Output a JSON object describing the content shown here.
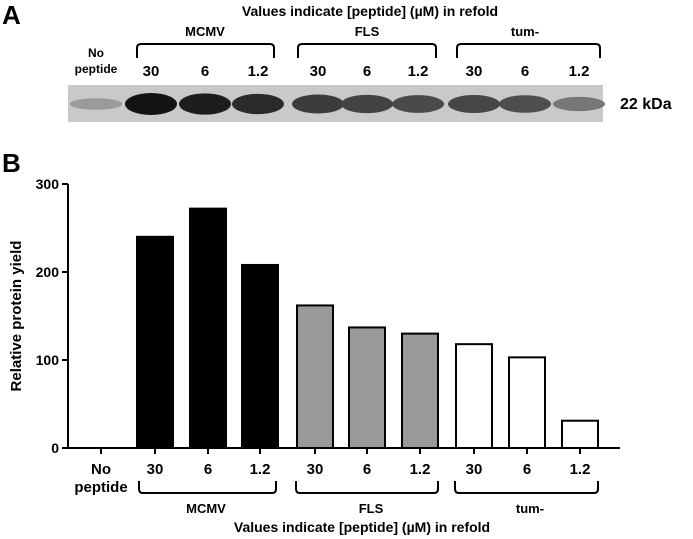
{
  "panel_a": {
    "letter": "A",
    "header": "Values indicate [peptide] (µM) in refold",
    "no_peptide_line1": "No",
    "no_peptide_line2": "peptide",
    "groups": [
      "MCMV",
      "FLS",
      "tum-"
    ],
    "lane_labels": [
      "30",
      "6",
      "1.2",
      "30",
      "6",
      "1.2",
      "30",
      "6",
      "1.2"
    ],
    "band_label": "22 kDa",
    "band_intensity": [
      0.25,
      1.0,
      0.95,
      0.88,
      0.78,
      0.74,
      0.7,
      0.72,
      0.68,
      0.45
    ]
  },
  "chart_data": {
    "type": "bar",
    "panel_letter": "B",
    "categories": [
      "No peptide",
      "30",
      "6",
      "1.2",
      "30",
      "6",
      "1.2",
      "30",
      "6",
      "1.2"
    ],
    "cat_no_line1": "No",
    "cat_no_line2": "peptide",
    "values": [
      0,
      240,
      272,
      208,
      162,
      137,
      130,
      118,
      103,
      31
    ],
    "groups": [
      {
        "name": "MCMV",
        "start": 1,
        "end": 3,
        "fill": "#000000"
      },
      {
        "name": "FLS",
        "start": 4,
        "end": 6,
        "fill": "#999999"
      },
      {
        "name": "tum-",
        "start": 7,
        "end": 9,
        "fill": "#ffffff"
      }
    ],
    "ylabel": "Relative protein yield",
    "xlabel": "Values indicate [peptide] (µM) in refold",
    "ylim": [
      0,
      300
    ],
    "yticks": [
      "0",
      "100",
      "200",
      "300"
    ],
    "grid": false,
    "colors": {
      "mcmv": "#000000",
      "fls": "#999999",
      "tum": "#ffffff",
      "stroke": "#000000"
    }
  }
}
